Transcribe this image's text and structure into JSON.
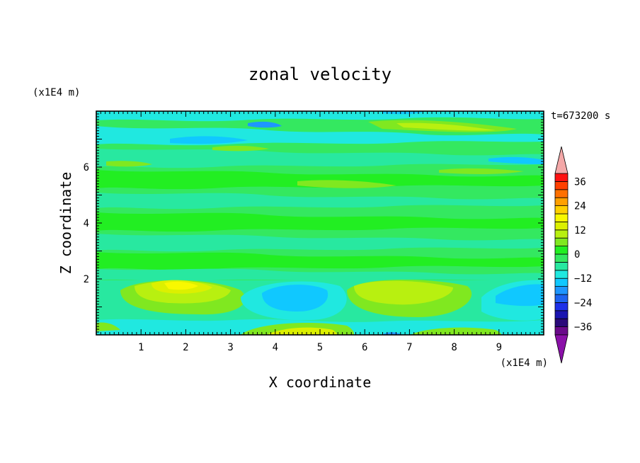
{
  "chart_data": {
    "type": "heatmap",
    "title": "zonal velocity",
    "time_label": "t=673200 s",
    "xlabel": "X coordinate",
    "ylabel": "Z coordinate",
    "x_unit": "(x1E4 m)",
    "y_unit": "(x1E4 m)",
    "xlim": [
      0,
      10
    ],
    "ylim": [
      0,
      8
    ],
    "x_ticks": [
      "1",
      "2",
      "3",
      "4",
      "5",
      "6",
      "7",
      "8",
      "9"
    ],
    "y_ticks": [
      "2",
      "4",
      "6"
    ],
    "colorbar": {
      "levels": [
        -40,
        -36,
        -32,
        -28,
        -24,
        -20,
        -16,
        -12,
        -8,
        -4,
        0,
        4,
        8,
        12,
        16,
        20,
        24,
        28,
        32,
        36,
        40
      ],
      "tick_labels": [
        "36",
        "24",
        "12",
        "0",
        "−12",
        "−24",
        "−36"
      ],
      "tick_values": [
        36,
        24,
        12,
        0,
        -12,
        -24,
        -36
      ],
      "colors": [
        "#6a0a8a",
        "#2a0a7a",
        "#1a14b0",
        "#1e30e8",
        "#1e64f0",
        "#1e96ff",
        "#10c8ff",
        "#20e8e0",
        "#28e8a0",
        "#34e860",
        "#22ee22",
        "#80e820",
        "#b8f010",
        "#dcf000",
        "#f8f800",
        "#ffd000",
        "#ffa000",
        "#ff7000",
        "#ff4000",
        "#ff1010"
      ],
      "under_color": "#8a10a8",
      "over_color": "#f4a8a8",
      "extend": "both"
    },
    "field_summary": [
      {
        "x": 2.0,
        "z": 1.6,
        "u": 12,
        "note": "positive"
      },
      {
        "x": 4.5,
        "z": 1.5,
        "u": -10,
        "note": "negative"
      },
      {
        "x": 6.8,
        "z": 1.4,
        "u": 8,
        "note": "positive"
      },
      {
        "x": 4.5,
        "z": 0.2,
        "u": 14,
        "note": "positive"
      },
      {
        "x": 9.3,
        "z": 1.5,
        "u": -10,
        "note": "negative"
      },
      {
        "x": 3.7,
        "z": 7.4,
        "u": -16,
        "note": "negative"
      },
      {
        "x": 7.0,
        "z": 7.3,
        "u": 8,
        "note": "positive"
      }
    ]
  }
}
